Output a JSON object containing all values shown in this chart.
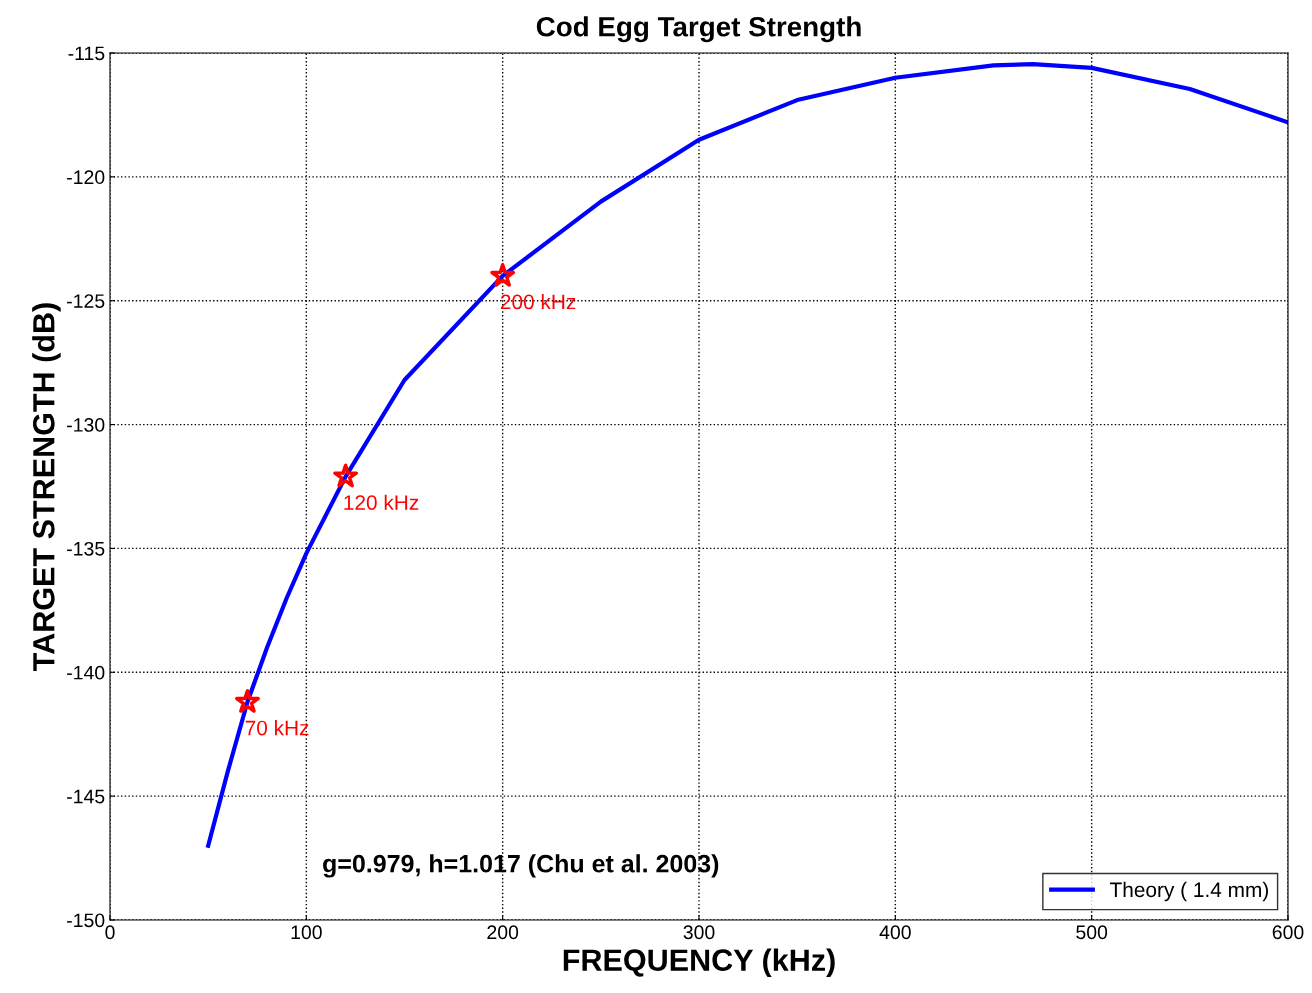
{
  "chart_data": {
    "type": "line",
    "title": "Cod Egg Target Strength",
    "xlabel": "FREQUENCY (kHz)",
    "ylabel": "TARGET STRENGTH (dB)",
    "xlim": [
      0,
      600
    ],
    "xticks": [
      0,
      100,
      200,
      300,
      400,
      500,
      600
    ],
    "ylim": [
      -150,
      -115
    ],
    "yticks": [
      -150,
      -145,
      -140,
      -135,
      -130,
      -125,
      -120,
      -115
    ],
    "grid": true,
    "legend": "bottom right",
    "series": [
      {
        "name": "Theory ( 1.4 mm)",
        "color": "#0000ff",
        "marker": "none",
        "line_style": "solid",
        "x": [
          50,
          60,
          70,
          80,
          90,
          100,
          120,
          150,
          200,
          250,
          300,
          350,
          400,
          450,
          470,
          500,
          550,
          600
        ],
        "values": [
          -147.0,
          -144.0,
          -141.2,
          -139.0,
          -137.0,
          -135.2,
          -132.1,
          -128.2,
          -124.0,
          -121.0,
          -118.5,
          -116.9,
          -116.0,
          -115.5,
          -115.45,
          -115.6,
          -116.45,
          -117.8
        ]
      },
      {
        "type": "scatter",
        "color": "#ff0000",
        "marker": "star",
        "x": [
          70,
          120,
          200
        ],
        "values": [
          -141.2,
          -132.1,
          -124.0
        ]
      }
    ],
    "annotations": [
      {
        "text": "70 kHz",
        "x": 70,
        "y": -141.2
      },
      {
        "text": "120 kHz",
        "x": 120,
        "y": -132.1
      },
      {
        "text": "200 kHz",
        "x": 200,
        "y": -124.0
      },
      "g=0.979, h=1.017 (Chu et al. 2003)"
    ]
  }
}
